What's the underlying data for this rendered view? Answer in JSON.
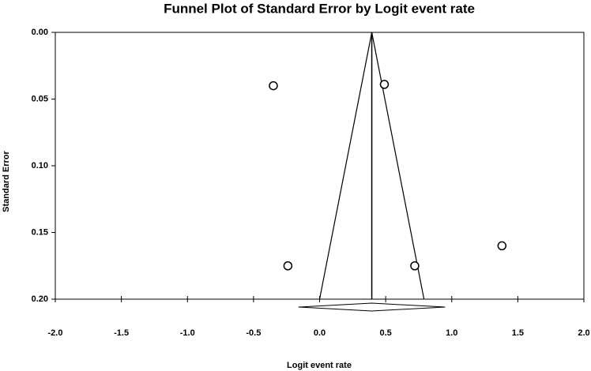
{
  "chart_data": {
    "type": "funnel",
    "title": "Funnel Plot of Standard Error by Logit event rate",
    "x_label": "Logit event rate",
    "y_label": "Standard Error",
    "xlim": [
      -2,
      2
    ],
    "ylim": [
      0,
      0.2
    ],
    "y_inverted": true,
    "xticks": [
      {
        "value": -2,
        "label": "-2.0"
      },
      {
        "value": -1.5,
        "label": "-1.5"
      },
      {
        "value": -1,
        "label": "-1.0"
      },
      {
        "value": -0.5,
        "label": "-0.5"
      },
      {
        "value": 0,
        "label": "0.0"
      },
      {
        "value": 0.5,
        "label": "0.5"
      },
      {
        "value": 1,
        "label": "1.0"
      },
      {
        "value": 1.5,
        "label": "1.5"
      },
      {
        "value": 2,
        "label": "2.0"
      }
    ],
    "yticks": [
      {
        "value": 0,
        "label": "0.00"
      },
      {
        "value": 0.05,
        "label": "0.05"
      },
      {
        "value": 0.1,
        "label": "0.10"
      },
      {
        "value": 0.15,
        "label": "0.15"
      },
      {
        "value": 0.2,
        "label": "0.20"
      }
    ],
    "x": [
      -0.35,
      0.49,
      -0.24,
      0.72,
      1.38
    ],
    "values": [
      0.04,
      0.039,
      0.175,
      0.175,
      0.16
    ],
    "funnel": {
      "center": 0.395,
      "lower_at_max": 0.0,
      "upper_at_max": 0.79
    },
    "summary": {
      "estimate": 0.395,
      "lower": -0.16,
      "upper": 0.95
    },
    "color": "#000000"
  }
}
